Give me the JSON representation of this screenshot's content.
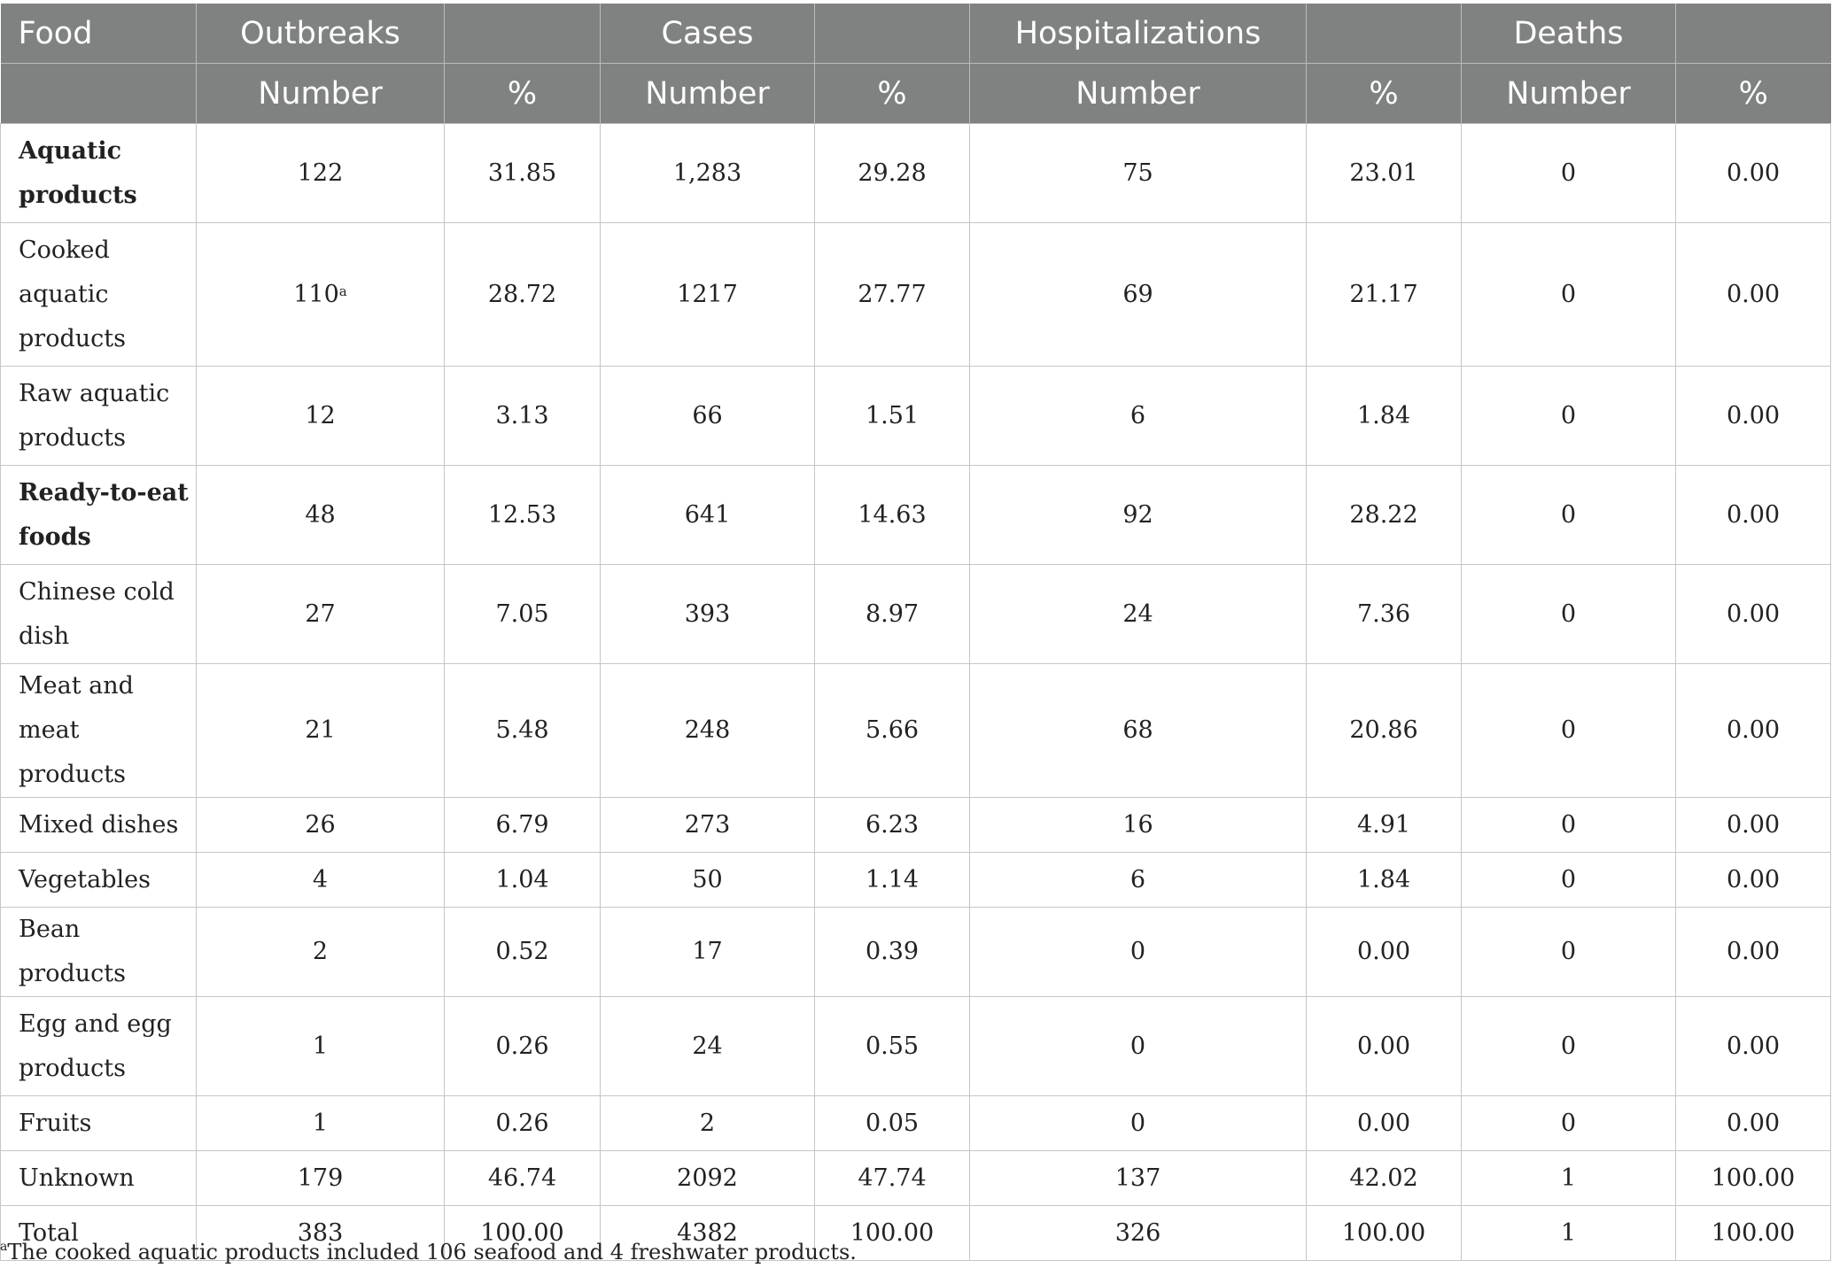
{
  "table": {
    "header_row1": [
      "Food",
      "Outbreaks",
      "",
      "Cases",
      "",
      "Hospitalizations",
      "",
      "Deaths",
      ""
    ],
    "header_row2": [
      "",
      "Number",
      "%",
      "Number",
      "%",
      "Number",
      "%",
      "Number",
      "%"
    ],
    "rows": [
      {
        "label": "Aquatic products",
        "bold": true,
        "cells": [
          "122",
          "31.85",
          "1,283",
          "29.28",
          "75",
          "23.01",
          "0",
          "0.00"
        ]
      },
      {
        "label": "Cooked aquatic products",
        "cells": [
          "110",
          "28.72",
          "1217",
          "27.77",
          "69",
          "21.17",
          "0",
          "0.00"
        ],
        "footnote_mark": "a"
      },
      {
        "label": "Raw aquatic products",
        "cells": [
          "12",
          "3.13",
          "66",
          "1.51",
          "6",
          "1.84",
          "0",
          "0.00"
        ]
      },
      {
        "label": "Ready-to-eat foods",
        "bold": true,
        "cells": [
          "48",
          "12.53",
          "641",
          "14.63",
          "92",
          "28.22",
          "0",
          "0.00"
        ]
      },
      {
        "label": "Chinese cold dish",
        "cells": [
          "27",
          "7.05",
          "393",
          "8.97",
          "24",
          "7.36",
          "0",
          "0.00"
        ]
      },
      {
        "label": "Meat and meat products",
        "cells": [
          "21",
          "5.48",
          "248",
          "5.66",
          "68",
          "20.86",
          "0",
          "0.00"
        ]
      },
      {
        "label": "Mixed dishes",
        "cells": [
          "26",
          "6.79",
          "273",
          "6.23",
          "16",
          "4.91",
          "0",
          "0.00"
        ]
      },
      {
        "label": "Vegetables",
        "cells": [
          "4",
          "1.04",
          "50",
          "1.14",
          "6",
          "1.84",
          "0",
          "0.00"
        ]
      },
      {
        "label": "Bean products",
        "cells": [
          "2",
          "0.52",
          "17",
          "0.39",
          "0",
          "0.00",
          "0",
          "0.00"
        ]
      },
      {
        "label": "Egg and egg products",
        "cells": [
          "1",
          "0.26",
          "24",
          "0.55",
          "0",
          "0.00",
          "0",
          "0.00"
        ]
      },
      {
        "label": "Fruits",
        "cells": [
          "1",
          "0.26",
          "2",
          "0.05",
          "0",
          "0.00",
          "0",
          "0.00"
        ]
      },
      {
        "label": "Unknown",
        "cells": [
          "179",
          "46.74",
          "2092",
          "47.74",
          "137",
          "42.02",
          "1",
          "100.00"
        ]
      },
      {
        "label": "Total",
        "cells": [
          "383",
          "100.00",
          "4382",
          "100.00",
          "326",
          "100.00",
          "1",
          "100.00"
        ]
      }
    ]
  },
  "footnote": {
    "mark": "a",
    "text": "The cooked aquatic products included 106 seafood and 4 freshwater products."
  }
}
